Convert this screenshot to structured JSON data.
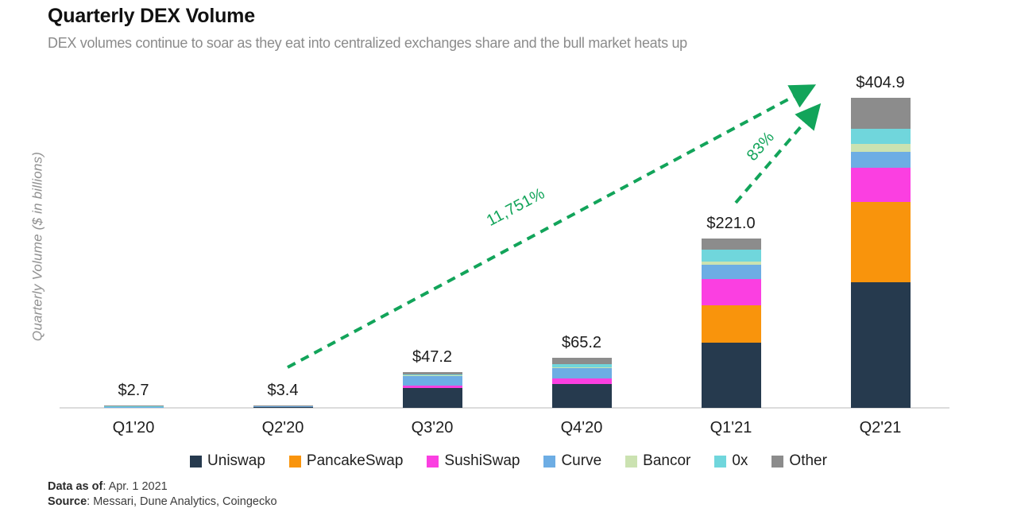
{
  "header": {
    "title": "Quarterly DEX Volume",
    "subtitle": "DEX volumes continue to soar as they eat into centralized exchanges share and the bull market heats up"
  },
  "chart_data": {
    "type": "bar",
    "stacked": true,
    "title": "Quarterly DEX Volume",
    "ylabel": "Quarterly Volume ($ in billions)",
    "xlabel": "",
    "grid": false,
    "legend_position": "bottom",
    "categories": [
      "Q1'20",
      "Q2'20",
      "Q3'20",
      "Q4'20",
      "Q1'21",
      "Q2'21"
    ],
    "series": [
      {
        "name": "Uniswap",
        "color": "#263a4e",
        "values": [
          0.9,
          1.5,
          26.0,
          31.0,
          85.0,
          164.0
        ]
      },
      {
        "name": "PancakeSwap",
        "color": "#f9940c",
        "values": [
          0.0,
          0.0,
          0.0,
          0.0,
          49.0,
          105.0
        ]
      },
      {
        "name": "SushiSwap",
        "color": "#fb3fe1",
        "values": [
          0.0,
          0.0,
          3.0,
          7.0,
          34.0,
          45.0
        ]
      },
      {
        "name": "Curve",
        "color": "#6dade4",
        "values": [
          0.5,
          0.9,
          13.0,
          14.0,
          19.0,
          20.0
        ]
      },
      {
        "name": "Bancor",
        "color": "#cbe2b1",
        "values": [
          0.0,
          0.0,
          0.5,
          1.0,
          4.0,
          11.0
        ]
      },
      {
        "name": "0x",
        "color": "#70d6dc",
        "values": [
          0.4,
          0.3,
          1.5,
          4.0,
          16.0,
          19.0
        ]
      },
      {
        "name": "Other",
        "color": "#8c8c8c",
        "values": [
          0.9,
          0.7,
          3.2,
          8.2,
          14.0,
          40.9
        ]
      }
    ],
    "totals": [
      2.7,
      3.4,
      47.2,
      65.2,
      221.0,
      404.9
    ],
    "total_labels": [
      "$2.7",
      "$3.4",
      "$47.2",
      "$65.2",
      "$221.0",
      "$404.9"
    ],
    "ylim": [
      0,
      420
    ],
    "annotations": [
      {
        "text": "11,751%",
        "from": "Q2'20",
        "to": "Q2'21",
        "color": "#12a45a"
      },
      {
        "text": "83%",
        "from": "Q1'21",
        "to": "Q2'21",
        "color": "#12a45a"
      }
    ]
  },
  "footer": {
    "data_as_of_label": "Data as of",
    "data_as_of_value": ": Apr. 1 2021",
    "source_label": "Source",
    "source_value": ": Messari, Dune Analytics, Coingecko"
  }
}
